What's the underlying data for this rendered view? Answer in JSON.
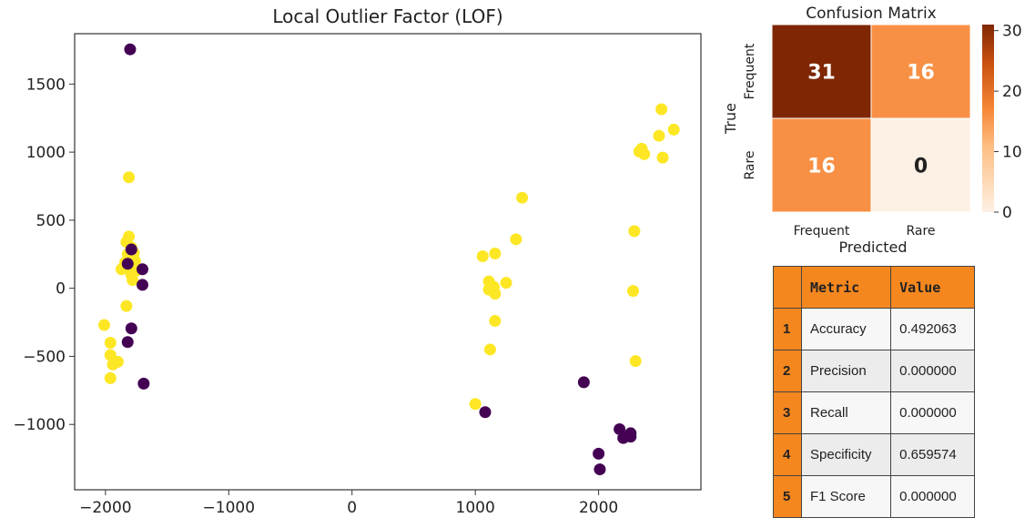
{
  "chart_data": [
    {
      "type": "scatter",
      "title": "Local Outlier Factor (LOF)",
      "xlabel": "",
      "ylabel": "",
      "xlim": [
        -2250,
        2830
      ],
      "ylim": [
        -1480,
        1870
      ],
      "x_ticks": [
        -2000,
        -1000,
        0,
        1000,
        2000
      ],
      "y_ticks": [
        -1000,
        -500,
        0,
        500,
        1000,
        1500
      ],
      "colors": {
        "yellow": "#fde725",
        "purple": "#440154"
      },
      "series": [
        {
          "color": "yellow",
          "points": [
            [
              -1810,
              815
            ],
            [
              -1810,
              380
            ],
            [
              -1830,
              340
            ],
            [
              -1790,
              300
            ],
            [
              -1770,
              260
            ],
            [
              -1820,
              250
            ],
            [
              -1800,
              220
            ],
            [
              -1760,
              200
            ],
            [
              -1840,
              190
            ],
            [
              -1780,
              180
            ],
            [
              -1800,
              160
            ],
            [
              -1870,
              140
            ],
            [
              -1750,
              130
            ],
            [
              -1790,
              100
            ],
            [
              -1780,
              60
            ],
            [
              -1830,
              -130
            ],
            [
              -2010,
              -270
            ],
            [
              -1960,
              -400
            ],
            [
              -1960,
              -490
            ],
            [
              -1940,
              -560
            ],
            [
              -1900,
              -540
            ],
            [
              -1960,
              -660
            ],
            [
              1380,
              665
            ],
            [
              1330,
              360
            ],
            [
              1160,
              255
            ],
            [
              1060,
              235
            ],
            [
              1110,
              50
            ],
            [
              1250,
              40
            ],
            [
              1150,
              10
            ],
            [
              1110,
              -10
            ],
            [
              1160,
              -40
            ],
            [
              1160,
              -240
            ],
            [
              1120,
              -450
            ],
            [
              1000,
              -850
            ],
            [
              2510,
              1315
            ],
            [
              2610,
              1165
            ],
            [
              2490,
              1120
            ],
            [
              2350,
              1025
            ],
            [
              2330,
              1005
            ],
            [
              2370,
              985
            ],
            [
              2520,
              960
            ],
            [
              2290,
              420
            ],
            [
              2280,
              -20
            ],
            [
              2300,
              -535
            ]
          ]
        },
        {
          "color": "purple",
          "points": [
            [
              -1800,
              1755
            ],
            [
              -1790,
              285
            ],
            [
              -1820,
              180
            ],
            [
              -1700,
              140
            ],
            [
              -1700,
              25
            ],
            [
              -1790,
              -295
            ],
            [
              -1820,
              -395
            ],
            [
              -1690,
              -700
            ],
            [
              1080,
              -910
            ],
            [
              1880,
              -690
            ],
            [
              2170,
              -1035
            ],
            [
              2260,
              -1065
            ],
            [
              2200,
              -1100
            ],
            [
              2260,
              -1090
            ],
            [
              2000,
              -1215
            ],
            [
              2010,
              -1330
            ]
          ]
        }
      ]
    },
    {
      "type": "heatmap",
      "title": "Confusion Matrix",
      "xlabel": "Predicted",
      "ylabel": "True",
      "x_categories": [
        "Frequent",
        "Rare"
      ],
      "y_categories": [
        "Frequent",
        "Rare"
      ],
      "values": [
        [
          31,
          16
        ],
        [
          16,
          0
        ]
      ],
      "colorbar_ticks": [
        0,
        10,
        20,
        30
      ],
      "colorbar_range": [
        0,
        31
      ]
    },
    {
      "type": "table",
      "columns": [
        "Metric",
        "Value"
      ],
      "rows": [
        {
          "index": "1",
          "metric": "Accuracy",
          "value": "0.492063"
        },
        {
          "index": "2",
          "metric": "Precision",
          "value": "0.000000"
        },
        {
          "index": "3",
          "metric": "Recall",
          "value": "0.000000"
        },
        {
          "index": "4",
          "metric": "Specificity",
          "value": "0.659574"
        },
        {
          "index": "5",
          "metric": "F1 Score",
          "value": "0.000000"
        }
      ]
    }
  ]
}
